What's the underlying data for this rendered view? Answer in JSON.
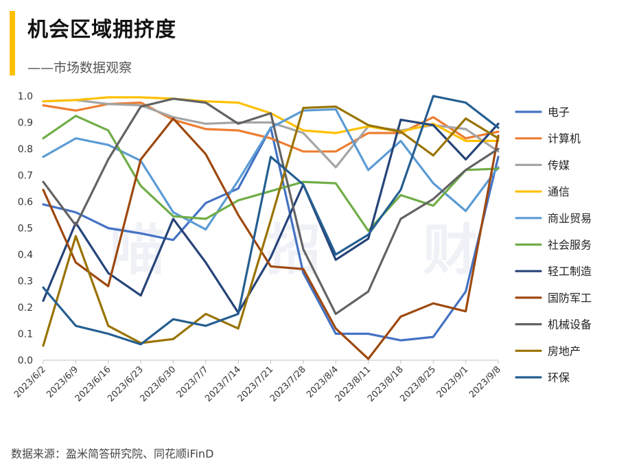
{
  "header": {
    "title": "机会区域拥挤度",
    "subtitle": "——市场数据观察"
  },
  "watermark": "喵 招 财",
  "footer": {
    "source": "数据来源：盈米简答研究院、同花顺iFinD"
  },
  "chart_data": {
    "type": "line",
    "title": "",
    "xlabel": "",
    "ylabel": "",
    "ylim": [
      0,
      1
    ],
    "yticks": [
      "0.0",
      "0.1",
      "0.2",
      "0.3",
      "0.4",
      "0.5",
      "0.6",
      "0.7",
      "0.8",
      "0.9",
      "1.0"
    ],
    "x_tick_labels": [
      "2023/6/2",
      "2023/6/9",
      "2023/6/16",
      "2023/6/23",
      "2023/6/30",
      "2023/7/7",
      "2023/7/14",
      "2023/7/21",
      "2023/7/28",
      "2023/8/4",
      "2023/8/11",
      "2023/8/18",
      "2023/8/25",
      "2023/9/1",
      "2023/9/8"
    ],
    "grid": false,
    "legend_position": "right",
    "series": [
      {
        "name": "电子",
        "color": "#4472c4",
        "values": [
          0.59,
          0.56,
          0.5,
          0.48,
          0.455,
          0.595,
          0.65,
          0.88,
          0.33,
          0.1,
          0.1,
          0.075,
          0.088,
          0.26,
          0.77
        ]
      },
      {
        "name": "计算机",
        "color": "#ed7d31",
        "values": [
          0.965,
          0.945,
          0.97,
          0.975,
          0.91,
          0.875,
          0.87,
          0.84,
          0.79,
          0.79,
          0.86,
          0.86,
          0.92,
          0.84,
          0.865
        ]
      },
      {
        "name": "传媒",
        "color": "#a5a5a5",
        "values": [
          0.98,
          0.985,
          0.97,
          0.965,
          0.92,
          0.895,
          0.9,
          0.9,
          0.86,
          0.73,
          0.885,
          0.87,
          0.89,
          0.875,
          0.79
        ]
      },
      {
        "name": "通信",
        "color": "#ffc000",
        "values": [
          0.98,
          0.985,
          0.995,
          0.995,
          0.99,
          0.98,
          0.975,
          0.935,
          0.87,
          0.86,
          0.885,
          0.865,
          0.895,
          0.83,
          0.83
        ]
      },
      {
        "name": "商业贸易",
        "color": "#5b9bd5",
        "values": [
          0.77,
          0.84,
          0.815,
          0.755,
          0.56,
          0.495,
          0.68,
          0.88,
          0.945,
          0.95,
          0.72,
          0.83,
          0.67,
          0.565,
          0.73
        ]
      },
      {
        "name": "社会服务",
        "color": "#70ad47",
        "values": [
          0.84,
          0.925,
          0.87,
          0.66,
          0.545,
          0.535,
          0.605,
          0.64,
          0.675,
          0.67,
          0.49,
          0.625,
          0.585,
          0.72,
          0.725
        ]
      },
      {
        "name": "轻工制造",
        "color": "#264478",
        "values": [
          0.225,
          0.52,
          0.33,
          0.245,
          0.535,
          0.37,
          0.18,
          0.39,
          0.665,
          0.38,
          0.46,
          0.91,
          0.89,
          0.76,
          0.895
        ]
      },
      {
        "name": "国防军工",
        "color": "#9e480e",
        "values": [
          0.645,
          0.37,
          0.28,
          0.76,
          0.915,
          0.78,
          0.55,
          0.355,
          0.345,
          0.12,
          0.005,
          0.165,
          0.215,
          0.185,
          0.85
        ]
      },
      {
        "name": "机械设备",
        "color": "#636363",
        "values": [
          0.675,
          0.51,
          0.76,
          0.96,
          0.99,
          0.975,
          0.895,
          0.935,
          0.42,
          0.175,
          0.26,
          0.535,
          0.61,
          0.72,
          0.8
        ]
      },
      {
        "name": "房地产",
        "color": "#997300",
        "values": [
          0.055,
          0.47,
          0.13,
          0.065,
          0.08,
          0.175,
          0.12,
          0.53,
          0.955,
          0.96,
          0.89,
          0.865,
          0.775,
          0.915,
          0.84
        ]
      },
      {
        "name": "环保",
        "color": "#255e91",
        "values": [
          0.275,
          0.13,
          0.1,
          0.06,
          0.155,
          0.13,
          0.175,
          0.77,
          0.665,
          0.4,
          0.475,
          0.645,
          1.0,
          0.975,
          0.88
        ]
      }
    ]
  }
}
